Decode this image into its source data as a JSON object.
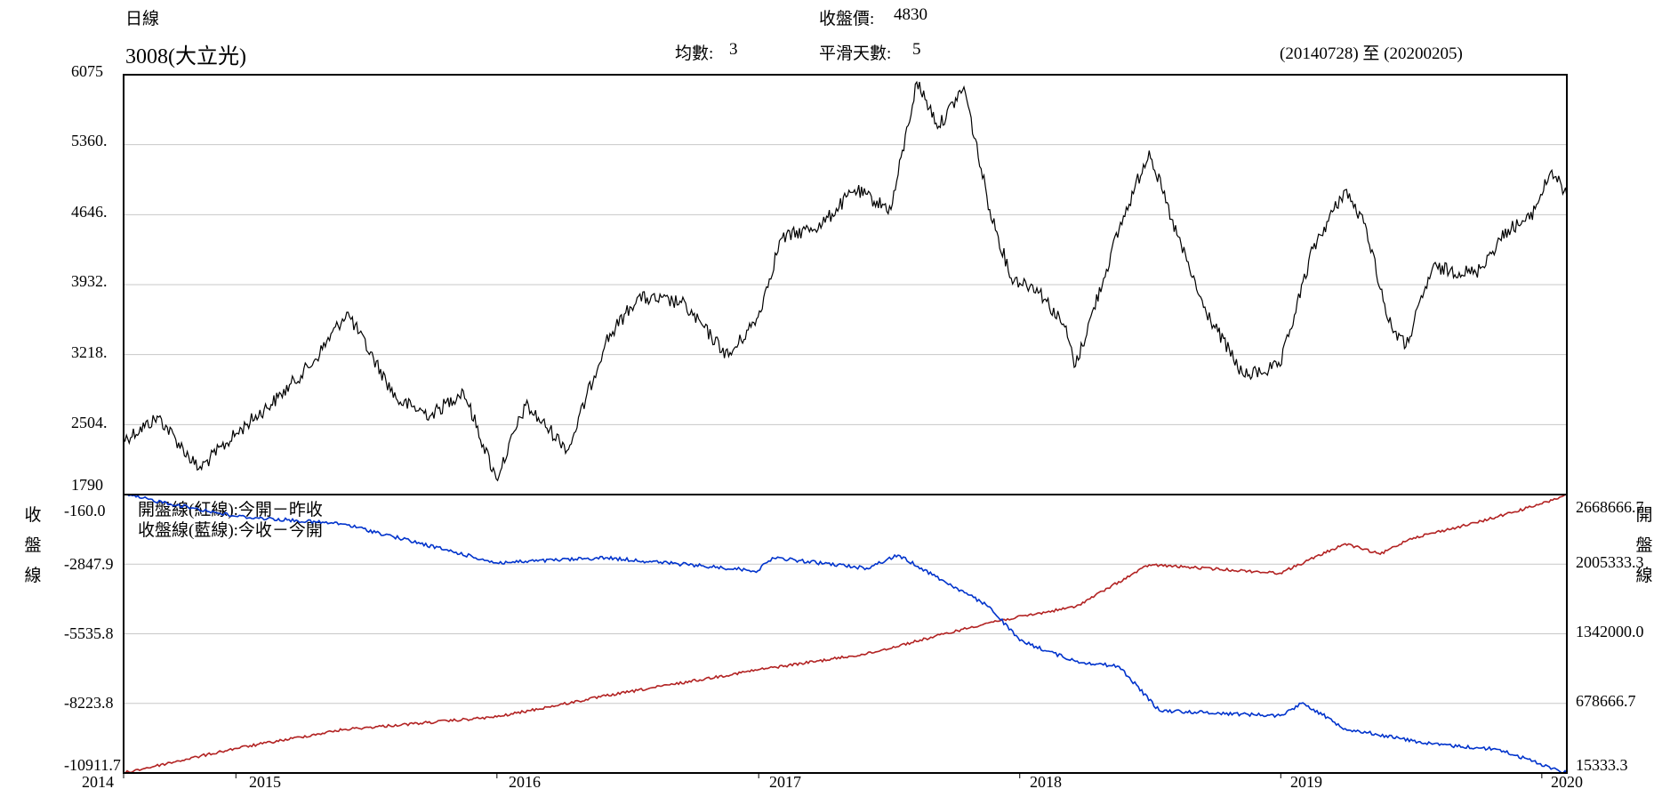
{
  "header": {
    "period": "日線",
    "stock": "3008(大立光)",
    "close_label": "收盤價:",
    "close_value": "4830",
    "avg_label": "均數:",
    "avg_value": "3",
    "smooth_label": "平滑天數:",
    "smooth_value": "5",
    "date_range": "(20140728) 至 (20200205)"
  },
  "colors": {
    "price_line": "#000000",
    "open_line": "#b22222",
    "close_line": "#0033cc",
    "grid": "#c8c8c8",
    "frame": "#000000"
  },
  "chart_data": [
    {
      "type": "line",
      "title": "3008(大立光)",
      "ylim": [
        1790,
        6075
      ],
      "y_ticks": [
        "6075",
        "5360.",
        "4646.",
        "3932.",
        "3218.",
        "2504.",
        "1790"
      ],
      "x_range": [
        "2014-07-28",
        "2020-02-05"
      ],
      "series": [
        {
          "points": [
            [
              "2014-07-28",
              2350
            ],
            [
              "2014-09-15",
              2580
            ],
            [
              "2014-11-10",
              2050
            ],
            [
              "2015-01-15",
              2500
            ],
            [
              "2015-03-01",
              2780
            ],
            [
              "2015-04-20",
              3150
            ],
            [
              "2015-06-05",
              3650
            ],
            [
              "2015-08-15",
              2750
            ],
            [
              "2015-10-01",
              2600
            ],
            [
              "2015-11-15",
              2850
            ],
            [
              "2015-12-31",
              1950
            ],
            [
              "2016-02-10",
              2700
            ],
            [
              "2016-04-10",
              2250
            ],
            [
              "2016-06-01",
              3350
            ],
            [
              "2016-07-15",
              3800
            ],
            [
              "2016-09-15",
              3750
            ],
            [
              "2016-11-20",
              3200
            ],
            [
              "2016-12-31",
              3600
            ],
            [
              "2017-02-01",
              4400
            ],
            [
              "2017-03-31",
              4550
            ],
            [
              "2017-05-15",
              4900
            ],
            [
              "2017-07-05",
              4700
            ],
            [
              "2017-08-10",
              6000
            ],
            [
              "2017-09-10",
              5550
            ],
            [
              "2017-10-15",
              5950
            ],
            [
              "2017-11-20",
              4700
            ],
            [
              "2017-12-20",
              4000
            ],
            [
              "2018-01-25",
              3900
            ],
            [
              "2018-03-05",
              3500
            ],
            [
              "2018-03-20",
              3100
            ],
            [
              "2018-05-20",
              4500
            ],
            [
              "2018-07-01",
              5300
            ],
            [
              "2018-08-01",
              4600
            ],
            [
              "2018-09-15",
              3700
            ],
            [
              "2018-11-10",
              3000
            ],
            [
              "2018-12-31",
              3100
            ],
            [
              "2019-02-15",
              4300
            ],
            [
              "2019-04-01",
              4900
            ],
            [
              "2019-05-01",
              4500
            ],
            [
              "2019-06-01",
              3550
            ],
            [
              "2019-06-25",
              3300
            ],
            [
              "2019-08-01",
              4100
            ],
            [
              "2019-10-01",
              4050
            ],
            [
              "2019-11-15",
              4500
            ],
            [
              "2019-12-15",
              4600
            ],
            [
              "2020-01-15",
              5100
            ],
            [
              "2020-02-05",
              4830
            ]
          ]
        }
      ]
    },
    {
      "type": "line",
      "ylabel_left": "收盤線",
      "ylabel_right": "開盤線",
      "ylim_left": [
        -10911.7,
        -160.0
      ],
      "ylim_right": [
        15333.3,
        2668666.7
      ],
      "left_ticks": [
        "-160.0",
        "-2847.9",
        "-5535.8",
        "-8223.8",
        "-10911.7"
      ],
      "right_ticks": [
        "2668666.7",
        "2005333.3",
        "1342000.0",
        "678666.7",
        "15333.3"
      ],
      "x_ticks": [
        "2014",
        "2015",
        "2016",
        "2017",
        "2018",
        "2019",
        "2020"
      ],
      "legend": [
        "開盤線(紅線):今開－昨收",
        "收盤線(藍線):今收－今開"
      ],
      "series": [
        {
          "axis": "right",
          "points": [
            [
              "2014-07-28",
              15333
            ],
            [
              "2015-01-01",
              250000
            ],
            [
              "2015-06-01",
              430000
            ],
            [
              "2016-01-01",
              550000
            ],
            [
              "2016-06-01",
              750000
            ],
            [
              "2017-01-01",
              1000000
            ],
            [
              "2017-06-01",
              1150000
            ],
            [
              "2017-11-20",
              1450000
            ],
            [
              "2018-03-20",
              1600000
            ],
            [
              "2018-07-01",
              2000000
            ],
            [
              "2018-12-31",
              1920000
            ],
            [
              "2019-04-01",
              2200000
            ],
            [
              "2019-05-20",
              2100000
            ],
            [
              "2019-07-01",
              2250000
            ],
            [
              "2019-10-01",
              2400000
            ],
            [
              "2020-01-01",
              2580000
            ],
            [
              "2020-02-05",
              2668667
            ]
          ]
        },
        {
          "axis": "left",
          "points": [
            [
              "2014-07-28",
              -160
            ],
            [
              "2015-01-01",
              -1000
            ],
            [
              "2015-06-01",
              -1300
            ],
            [
              "2016-01-01",
              -2800
            ],
            [
              "2016-06-01",
              -2600
            ],
            [
              "2016-12-31",
              -3100
            ],
            [
              "2017-01-20",
              -2600
            ],
            [
              "2017-06-01",
              -3000
            ],
            [
              "2017-07-15",
              -2500
            ],
            [
              "2017-11-20",
              -4500
            ],
            [
              "2018-01-01",
              -5800
            ],
            [
              "2018-03-20",
              -6600
            ],
            [
              "2018-05-20",
              -6800
            ],
            [
              "2018-07-15",
              -8500
            ],
            [
              "2018-12-31",
              -8700
            ],
            [
              "2019-02-01",
              -8200
            ],
            [
              "2019-04-01",
              -9200
            ],
            [
              "2019-08-01",
              -9800
            ],
            [
              "2019-11-01",
              -10000
            ],
            [
              "2020-02-05",
              -10911.7
            ]
          ]
        }
      ]
    }
  ]
}
